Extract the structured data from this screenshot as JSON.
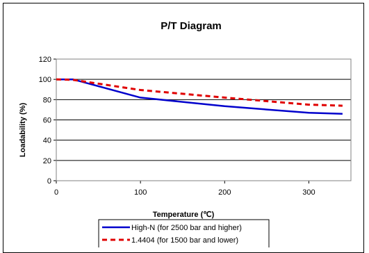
{
  "chart_data": {
    "type": "line",
    "title": "P/T Diagram",
    "xlabel": "Temperature (℃)",
    "ylabel": "Loadability (%)",
    "xlim": [
      0,
      350
    ],
    "ylim": [
      0,
      120
    ],
    "xticks": [
      "0",
      "100",
      "200",
      "300"
    ],
    "yticks": [
      "0",
      "20",
      "40",
      "60",
      "80",
      "100",
      "120"
    ],
    "grid": "horizontal",
    "legend_position": "bottom",
    "series": [
      {
        "name": "High-N (for 2500 bar and higher)",
        "color": "#0000cc",
        "style": "solid",
        "x": [
          0,
          20,
          100,
          200,
          300,
          340
        ],
        "y": [
          100,
          100,
          82,
          73.5,
          67,
          66
        ]
      },
      {
        "name": "1.4404 (for 1500 bar and lower)",
        "color": "#e00000",
        "style": "dashed",
        "x": [
          0,
          20,
          100,
          200,
          300,
          340
        ],
        "y": [
          100,
          99.5,
          89.5,
          82,
          75,
          74
        ]
      }
    ]
  }
}
